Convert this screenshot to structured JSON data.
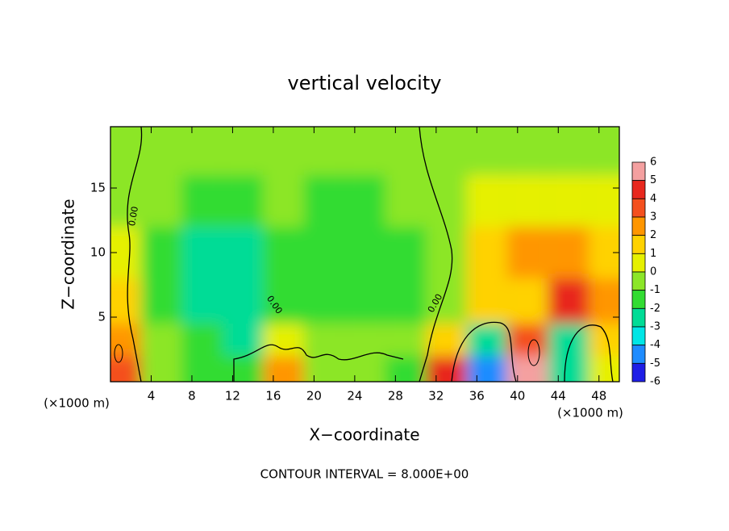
{
  "chart_data": {
    "type": "heatmap",
    "title": "vertical velocity",
    "x_label": "X−coordinate",
    "y_label": "Z−coordinate",
    "x_unit_label": "(×1000 m)",
    "y_unit_label": "(×1000 m)",
    "footer": "CONTOUR INTERVAL = 8.000E+00",
    "contour_label": "0.00",
    "xlim": [
      0,
      50
    ],
    "ylim": [
      0,
      19.75
    ],
    "xticks": [
      4,
      8,
      12,
      16,
      20,
      24,
      28,
      32,
      36,
      40,
      44,
      48
    ],
    "yticks": [
      5,
      10,
      15
    ],
    "x": [
      1,
      5,
      9,
      13,
      17,
      21,
      25,
      29,
      33,
      37,
      41,
      45,
      49
    ],
    "y": [
      1,
      3,
      6,
      10,
      14,
      18
    ],
    "z": [
      [
        3.5,
        -0.5,
        -1.5,
        -1.5,
        2.5,
        -0.5,
        -0.5,
        -1.5,
        4.5,
        -4.5,
        5.5,
        -2.5,
        0.5
      ],
      [
        2.5,
        -0.5,
        -1.5,
        -2.5,
        0.5,
        -0.5,
        -0.5,
        -0.5,
        1.5,
        -2.5,
        3.5,
        -2.5,
        1.5
      ],
      [
        1.5,
        -1.5,
        -2.5,
        -2.5,
        -1.5,
        -1.5,
        -1.5,
        -1.5,
        -0.5,
        1.5,
        1.5,
        4.5,
        2.5
      ],
      [
        0.5,
        -1.5,
        -2.5,
        -2.5,
        -1.5,
        -1.5,
        -1.5,
        -1.5,
        -0.5,
        1.5,
        2.5,
        2.5,
        1.5
      ],
      [
        -0.5,
        -0.5,
        -1.5,
        -1.5,
        -0.5,
        -1.5,
        -1.5,
        -0.5,
        -0.5,
        0.5,
        0.5,
        0.5,
        0.5
      ],
      [
        -0.5,
        -0.5,
        -0.5,
        -0.5,
        -0.5,
        -0.5,
        -0.5,
        -0.5,
        -0.5,
        -0.5,
        -0.5,
        -0.5,
        -0.5
      ]
    ],
    "colorbar": {
      "levels": [
        6,
        5,
        4,
        3,
        2,
        1,
        0,
        -1,
        -2,
        -3,
        -4,
        -5,
        -6
      ],
      "colors": [
        "#f4a0a0",
        "#e8281e",
        "#f4501e",
        "#ff9600",
        "#ffd200",
        "#e6f000",
        "#8ce628",
        "#32dc32",
        "#00dc96",
        "#00e6e6",
        "#1e8cff",
        "#1e1ee6"
      ]
    }
  }
}
